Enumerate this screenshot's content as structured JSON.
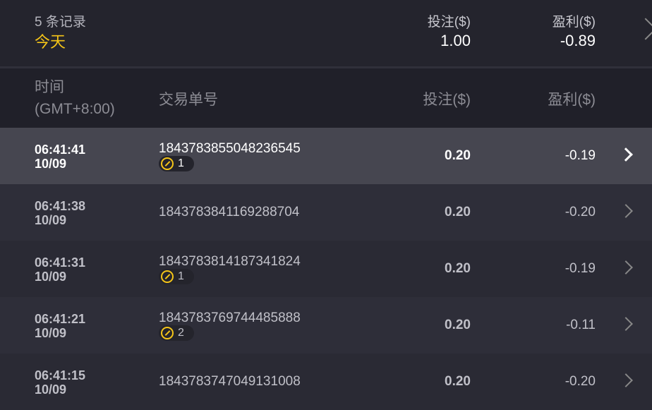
{
  "summary": {
    "count": "5 条记录",
    "date": "今天",
    "stake_label": "投注($)",
    "stake_value": "1.00",
    "profit_label": "盈利($)",
    "profit_value": "-0.89"
  },
  "columns": {
    "time": "时间",
    "timezone": "(GMT+8:00)",
    "order_id": "交易单号",
    "stake": "投注($)",
    "profit": "盈利($)"
  },
  "colors": {
    "accent": "#f5c518"
  },
  "rows": [
    {
      "time": "06:41:41",
      "date": "10/09",
      "order_id": "1843783855048236545",
      "badge": "1",
      "stake": "0.20",
      "profit": "-0.19"
    },
    {
      "time": "06:41:38",
      "date": "10/09",
      "order_id": "1843783841169288704",
      "stake": "0.20",
      "profit": "-0.20"
    },
    {
      "time": "06:41:31",
      "date": "10/09",
      "order_id": "1843783814187341824",
      "badge": "1",
      "stake": "0.20",
      "profit": "-0.19"
    },
    {
      "time": "06:41:21",
      "date": "10/09",
      "order_id": "1843783769744485888",
      "badge": "2",
      "stake": "0.20",
      "profit": "-0.11"
    },
    {
      "time": "06:41:15",
      "date": "10/09",
      "order_id": "1843783747049131008",
      "stake": "0.20",
      "profit": "-0.20"
    }
  ]
}
